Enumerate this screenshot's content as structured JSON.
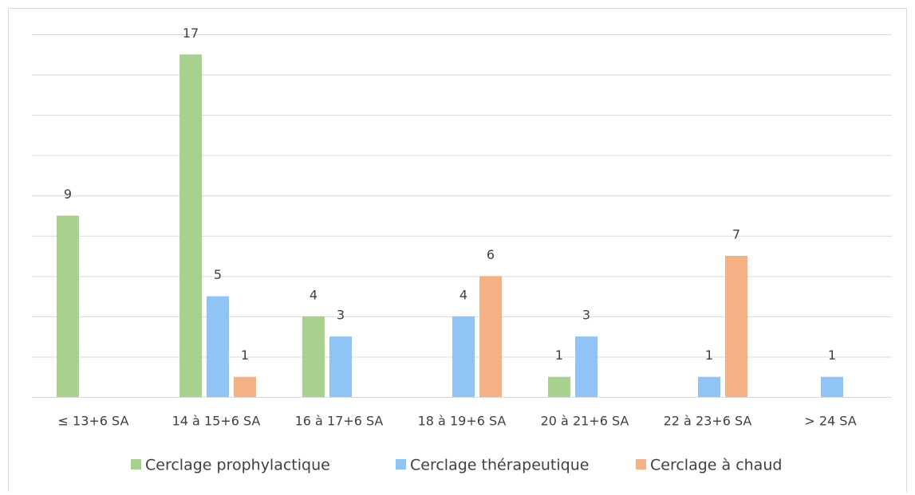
{
  "chart_data": {
    "type": "bar",
    "categories": [
      "≤ 13+6 SA",
      "14 à 15+6 SA",
      "16 à 17+6 SA",
      "18 à 19+6 SA",
      "20 à 21+6 SA",
      "22 à 23+6 SA",
      "> 24 SA"
    ],
    "series": [
      {
        "name": "Cerclage prophylactique",
        "color": "#a9d18e",
        "values": [
          9,
          17,
          4,
          null,
          1,
          null,
          null
        ]
      },
      {
        "name": "Cerclage thérapeutique",
        "color": "#90c4f6",
        "values": [
          null,
          5,
          3,
          4,
          3,
          1,
          1
        ]
      },
      {
        "name": "Cerclage à chaud",
        "color": "#f4b183",
        "values": [
          null,
          1,
          null,
          6,
          null,
          7,
          null
        ]
      }
    ],
    "ylim": [
      0,
      18
    ],
    "yticks": [
      0,
      2,
      4,
      6,
      8,
      10,
      12,
      14,
      16,
      18
    ],
    "grid": true,
    "legend": "bottom"
  }
}
